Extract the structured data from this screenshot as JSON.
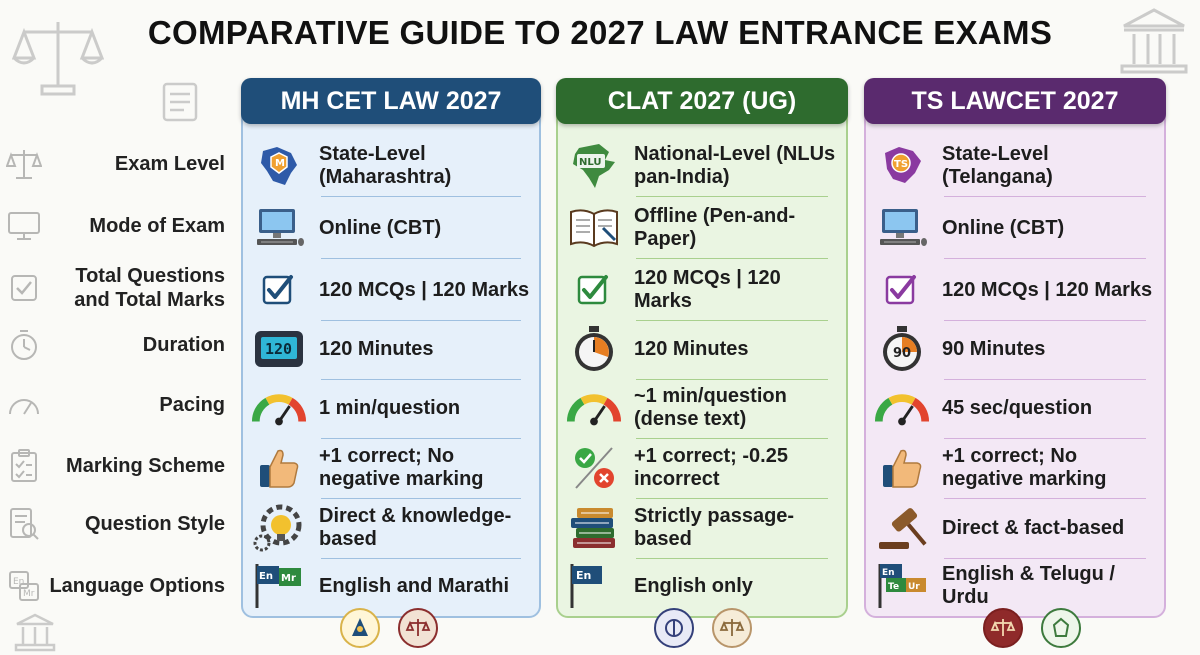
{
  "title": "COMPARATIVE GUIDE TO 2027 LAW ENTRANCE EXAMS",
  "row_labels": [
    {
      "text": "Exam Level",
      "icon": "scales-icon"
    },
    {
      "text": "Mode of Exam",
      "icon": "monitor-icon"
    },
    {
      "text": "Total Questions and Total Marks",
      "icon": "checkbox-icon"
    },
    {
      "text": "Duration",
      "icon": "stopwatch-icon"
    },
    {
      "text": "Pacing",
      "icon": "gauge-icon"
    },
    {
      "text": "Marking Scheme",
      "icon": "clipboard-icon"
    },
    {
      "text": "Question Style",
      "icon": "document-search-icon"
    },
    {
      "text": "Language Options",
      "icon": "language-icon"
    }
  ],
  "exams": [
    {
      "name": "MH CET LAW 2027",
      "header_color": "#1f4e79",
      "bg": "#e6f0fa",
      "border": "#9fc0e0",
      "cells": [
        {
          "icon": "maharashtra-map-icon",
          "text": "State-Level (Maharashtra)",
          "badge": "M"
        },
        {
          "icon": "computer-icon",
          "text": "Online (CBT)"
        },
        {
          "icon": "checkbox-icon",
          "text": "120 MCQs | 120 Marks"
        },
        {
          "icon": "digital-timer-icon",
          "text": "120 Minutes",
          "badge": "120"
        },
        {
          "icon": "speedometer-icon",
          "text": "1 min/question"
        },
        {
          "icon": "thumbs-up-icon",
          "text": "+1 correct; No negative marking"
        },
        {
          "icon": "gear-bulb-icon",
          "text": "Direct & knowledge-based"
        },
        {
          "icon": "language-flag-icon",
          "text": "English and Marathi",
          "badge": "En/Mr"
        }
      ]
    },
    {
      "name": "CLAT 2027 (UG)",
      "header_color": "#2e6b2e",
      "bg": "#eaf5e2",
      "border": "#a9d08e",
      "cells": [
        {
          "icon": "india-map-icon",
          "text": "National-Level (NLUs pan-India)",
          "badge": "NLU"
        },
        {
          "icon": "open-book-icon",
          "text": "Offline (Pen-and-Paper)"
        },
        {
          "icon": "checkbox-icon",
          "text": "120 MCQs | 120 Marks"
        },
        {
          "icon": "stopwatch-icon",
          "text": "120 Minutes"
        },
        {
          "icon": "speedometer-icon",
          "text": "~1 min/question (dense text)"
        },
        {
          "icon": "correct-incorrect-icon",
          "text": "+1 correct; -0.25 incorrect"
        },
        {
          "icon": "book-stack-icon",
          "text": "Strictly passage-based"
        },
        {
          "icon": "language-flag-icon",
          "text": "English only",
          "badge": "En"
        }
      ]
    },
    {
      "name": "TS LAWCET 2027",
      "header_color": "#5a2a6e",
      "bg": "#f3e8f5",
      "border": "#d4b0dc",
      "cells": [
        {
          "icon": "telangana-map-icon",
          "text": "State-Level (Telangana)",
          "badge": "TS"
        },
        {
          "icon": "computer-icon",
          "text": "Online (CBT)"
        },
        {
          "icon": "checkbox-icon",
          "text": "120 MCQs | 120 Marks"
        },
        {
          "icon": "stopwatch-icon",
          "text": "90 Minutes",
          "badge": "90"
        },
        {
          "icon": "speedometer-icon",
          "text": "45 sec/question"
        },
        {
          "icon": "thumbs-up-icon",
          "text": "+1 correct; No negative marking"
        },
        {
          "icon": "gavel-icon",
          "text": "Direct & fact-based"
        },
        {
          "icon": "language-flag-icon",
          "text": "English & Telugu / Urdu",
          "badge": "En/Te/Ur"
        }
      ]
    }
  ]
}
